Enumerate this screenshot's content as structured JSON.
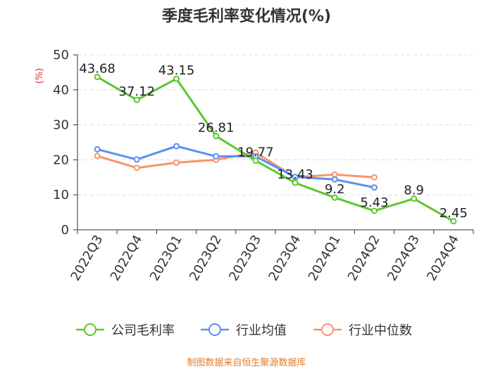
{
  "chart_data": {
    "type": "line",
    "title": "季度毛利率变化情况(%)",
    "ylabel": "(%)",
    "categories": [
      "2022Q3",
      "2022Q4",
      "2023Q1",
      "2023Q2",
      "2023Q3",
      "2023Q4",
      "2024Q1",
      "2024Q2",
      "2024Q3",
      "2024Q4"
    ],
    "y_ticks": [
      "0",
      "10",
      "20",
      "30",
      "40",
      "50"
    ],
    "ylim": [
      0,
      50
    ],
    "grid": true,
    "legend_position": "bottom",
    "series": [
      {
        "name": "公司毛利率",
        "color": "#5cc72f",
        "values": [
          43.68,
          37.12,
          43.15,
          26.81,
          19.77,
          13.43,
          9.2,
          5.43,
          8.9,
          2.45
        ],
        "labels": [
          "43.68",
          "37.12",
          "43.15",
          "26.81",
          "19.77",
          "13.43",
          "9.2",
          "5.43",
          "8.9",
          "2.45"
        ]
      },
      {
        "name": "行业均值",
        "color": "#5b8ff0",
        "values": [
          23.0,
          20.1,
          23.9,
          21.0,
          21.0,
          15.1,
          14.4,
          12.1,
          null,
          null
        ]
      },
      {
        "name": "行业中位数",
        "color": "#f7956a",
        "values": [
          21.1,
          17.7,
          19.2,
          20.0,
          22.1,
          15.0,
          15.8,
          15.0,
          null,
          null
        ]
      }
    ],
    "source": "制图数据来自恒生聚源数据库",
    "colors": {
      "axis": "#333333",
      "grid": "#dddddd",
      "ylabel": "#e8262c",
      "source": "#e57b26"
    }
  }
}
